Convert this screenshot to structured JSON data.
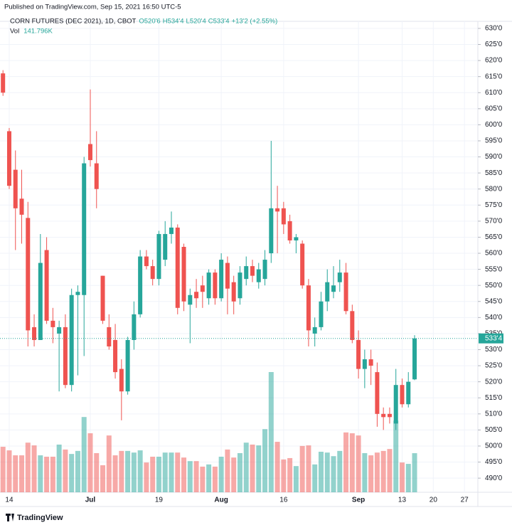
{
  "header": {
    "published": "Published on TradingView.com, Sep 15, 2021 16:50 UTC-5"
  },
  "footer": "TradingView",
  "chart_data": {
    "type": "candlestick",
    "title": "CORN FUTURES (DEC 2021), 1D, CBOT",
    "last_labels": [
      "O520'6",
      "H534'4",
      "L520'4",
      "C533'4",
      "+13'2 (+2.55%)"
    ],
    "last_price_label": "533'4",
    "volume_title": "Vol",
    "volume_label": "141.796K",
    "up_color": "#26a69a",
    "down_color": "#ef5350",
    "grid": true,
    "categories": [
      null,
      "14",
      null,
      null,
      null,
      null,
      null,
      null,
      null,
      null,
      null,
      null,
      null,
      null,
      "Jul",
      null,
      null,
      null,
      null,
      null,
      null,
      null,
      null,
      null,
      null,
      "19",
      null,
      null,
      null,
      null,
      null,
      null,
      null,
      null,
      null,
      "Aug",
      null,
      null,
      null,
      null,
      null,
      null,
      null,
      null,
      null,
      "16",
      null,
      null,
      null,
      null,
      null,
      null,
      null,
      null,
      null,
      null,
      null,
      "Sep",
      null,
      null,
      null,
      null,
      null,
      null,
      "13",
      null,
      null
    ],
    "future_categories": [
      "20",
      "27"
    ],
    "open": [
      616,
      598,
      586,
      577,
      571,
      537,
      533,
      561,
      539,
      535,
      537,
      519,
      547,
      547,
      594,
      588,
      553,
      537,
      533,
      524,
      517,
      533,
      541,
      559,
      556,
      552,
      558,
      566,
      568,
      562,
      544,
      548,
      550,
      546,
      554,
      546,
      557,
      551,
      546,
      552,
      556,
      551,
      552,
      560,
      574,
      574,
      570,
      564,
      563,
      550,
      535,
      537,
      545,
      548,
      551,
      554,
      542,
      533,
      524,
      527,
      523,
      510,
      510,
      507,
      519,
      513,
      520.75
    ],
    "high": [
      617,
      599,
      592,
      586,
      576,
      541,
      566,
      565,
      543,
      539,
      541,
      549,
      550,
      590,
      611,
      598,
      553,
      541,
      538,
      527,
      534,
      545,
      561,
      561,
      558,
      567,
      570,
      573,
      569,
      563,
      549,
      552,
      553,
      555,
      555,
      560,
      559,
      553,
      556,
      559,
      558,
      557,
      561,
      595,
      581,
      576,
      572,
      566,
      564,
      552,
      540,
      548,
      555,
      556,
      558,
      557,
      544,
      536,
      530,
      530,
      526,
      512,
      512,
      524,
      521,
      523,
      534.5
    ],
    "low": [
      609,
      580,
      561,
      563,
      531,
      531,
      533,
      538,
      532,
      517,
      518,
      517,
      522,
      528,
      587,
      574,
      538,
      530,
      521,
      508,
      516,
      530,
      540,
      555,
      550,
      550,
      556,
      563,
      541,
      542,
      532,
      543,
      543,
      544,
      544,
      545,
      541,
      541,
      544,
      550,
      551,
      549,
      550,
      557,
      560,
      566,
      563,
      560,
      549,
      531,
      531,
      536,
      542,
      546,
      548,
      541,
      532,
      521,
      518,
      519,
      506,
      505,
      507,
      505,
      512,
      512,
      520.5
    ],
    "close": [
      610,
      581,
      574,
      572,
      536,
      533,
      557,
      539,
      537,
      537,
      519,
      547,
      548,
      588,
      589,
      580,
      539,
      531,
      523,
      517,
      533,
      541,
      559,
      556,
      552,
      566,
      566,
      568,
      543,
      545,
      547,
      546,
      548,
      554,
      546,
      558,
      549,
      545,
      554,
      556,
      553,
      555,
      558,
      574,
      573,
      569,
      564,
      565,
      550,
      536,
      537,
      545,
      551,
      550,
      554,
      542,
      533,
      524,
      527,
      525,
      510,
      509,
      509,
      519,
      513,
      520,
      533.5
    ],
    "volume": [
      165,
      152,
      134,
      134,
      180,
      170,
      134,
      129,
      129,
      173,
      155,
      139,
      150,
      273,
      214,
      142,
      98,
      206,
      134,
      150,
      150,
      144,
      152,
      108,
      129,
      129,
      144,
      144,
      144,
      126,
      113,
      113,
      93,
      101,
      93,
      129,
      155,
      126,
      142,
      180,
      173,
      170,
      229,
      436,
      183,
      119,
      124,
      95,
      168,
      170,
      101,
      147,
      144,
      131,
      150,
      217,
      214,
      206,
      142,
      134,
      144,
      150,
      157,
      260,
      108,
      103,
      141.796
    ],
    "ylim": [
      485.6,
      632.2
    ],
    "yticks": [
      {
        "value": 630,
        "label": "630'0"
      },
      {
        "value": 625,
        "label": "625'0"
      },
      {
        "value": 620,
        "label": "620'0"
      },
      {
        "value": 615,
        "label": "615'0"
      },
      {
        "value": 610,
        "label": "610'0"
      },
      {
        "value": 605,
        "label": "605'0"
      },
      {
        "value": 600,
        "label": "600'0"
      },
      {
        "value": 595,
        "label": "595'0"
      },
      {
        "value": 590,
        "label": "590'0"
      },
      {
        "value": 585,
        "label": "585'0"
      },
      {
        "value": 580,
        "label": "580'0"
      },
      {
        "value": 575,
        "label": "575'0"
      },
      {
        "value": 570,
        "label": "570'0"
      },
      {
        "value": 565,
        "label": "565'0"
      },
      {
        "value": 560,
        "label": "560'0"
      },
      {
        "value": 555,
        "label": "555'0"
      },
      {
        "value": 550,
        "label": "550'0"
      },
      {
        "value": 545,
        "label": "545'0"
      },
      {
        "value": 540,
        "label": "540'0"
      },
      {
        "value": 535,
        "label": "535'0"
      },
      {
        "value": 530,
        "label": "530'0"
      },
      {
        "value": 525,
        "label": "525'0"
      },
      {
        "value": 520,
        "label": "520'0"
      },
      {
        "value": 515,
        "label": "515'0"
      },
      {
        "value": 510,
        "label": "510'0"
      },
      {
        "value": 505,
        "label": "505'0"
      },
      {
        "value": 500,
        "label": "500'0"
      },
      {
        "value": 495,
        "label": "495'0"
      },
      {
        "value": 490,
        "label": "490'0"
      }
    ]
  }
}
